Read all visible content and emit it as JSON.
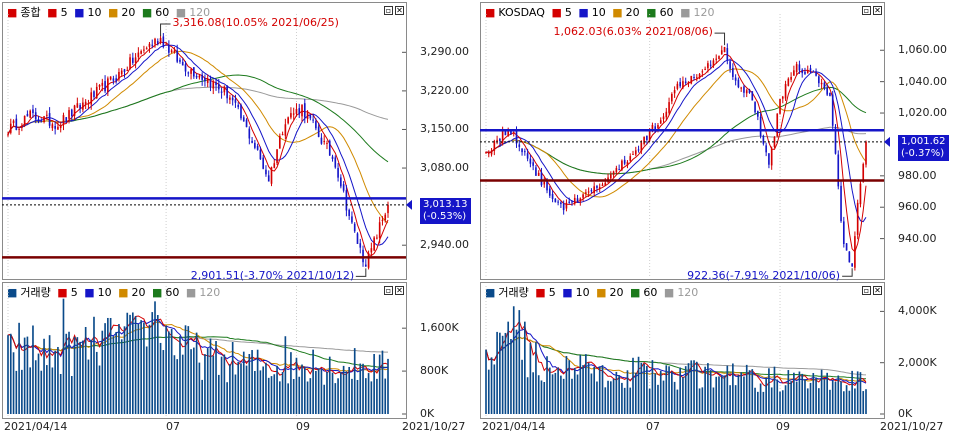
{
  "left": {
    "price_panel": {
      "legend": {
        "name": "종합",
        "ma": [
          "5",
          "10",
          "20",
          "60",
          "120"
        ]
      },
      "y_ticks": [
        "3,290.00",
        "3,220.00",
        "3,150.00",
        "3,080.00",
        "2,940.00"
      ],
      "y_tick_values": [
        3290,
        3220,
        3150,
        3080,
        2940
      ],
      "ylim": [
        2895,
        3345
      ],
      "current": {
        "value": "3,013.13",
        "change": "(-0.53%)",
        "v": 3013.13
      },
      "hlines": [
        {
          "v": 3025,
          "color": "#1515c8"
        },
        {
          "v": 2918,
          "color": "#7a0000"
        }
      ],
      "dash_v": 3013.13,
      "max_ann": "3,316.08(10.05% 2021/06/25)",
      "min_ann": "2,901.51(-3.70% 2021/10/12)"
    },
    "volume_panel": {
      "legend": {
        "name": "거래량",
        "ma": [
          "5",
          "10",
          "20",
          "60",
          "120"
        ]
      },
      "y_ticks": [
        "1,600K",
        "800K",
        "0K"
      ],
      "y_tick_values": [
        1600,
        800,
        0
      ],
      "ylim": [
        0,
        2200
      ]
    },
    "x_labels": [
      "2021/04/14",
      "07",
      "09"
    ],
    "x_end": "2021/10/27"
  },
  "right": {
    "price_panel": {
      "legend": {
        "name": "KOSDAQ",
        "ma": [
          "5",
          "10",
          "20",
          "60",
          "120"
        ]
      },
      "y_ticks": [
        "1,060.00",
        "1,040.00",
        "1,020.00",
        "980.00",
        "960.00",
        "940.00"
      ],
      "y_tick_values": [
        1060,
        1040,
        1020,
        980,
        960,
        940
      ],
      "ylim": [
        920,
        1078
      ],
      "current": {
        "value": "1,001.62",
        "change": "(-0.37%)",
        "v": 1001.62
      },
      "hlines": [
        {
          "v": 1009,
          "color": "#1515c8"
        },
        {
          "v": 977,
          "color": "#7a0000"
        }
      ],
      "dash_v": 1001.62,
      "max_ann": "1,062.03(6.03% 2021/08/06)",
      "min_ann": "922.36(-7.91% 2021/10/06)"
    },
    "volume_panel": {
      "legend": {
        "name": "거래량",
        "ma": [
          "5",
          "10",
          "20",
          "60",
          "120"
        ]
      },
      "y_ticks": [
        "4,000K",
        "2,000K",
        "0K"
      ],
      "y_tick_values": [
        4000,
        2000,
        0
      ],
      "ylim": [
        0,
        4600
      ]
    },
    "x_labels": [
      "2021/04/14",
      "07",
      "09"
    ],
    "x_end": "2021/10/27"
  },
  "colors": {
    "up": "#d40000",
    "down": "#1515c8",
    "ma5": "#d40000",
    "ma10": "#1515c8",
    "ma20": "#d08a00",
    "ma60": "#1c7a1c",
    "ma120": "#9a9a9a",
    "vol": "#0a4a8a"
  },
  "chart_data": [
    {
      "type": "line",
      "title": "종합",
      "x": [
        "2021/04/14",
        "2021/06/25",
        "2021/10/12",
        "2021/10/27"
      ],
      "series": [
        {
          "name": "종합",
          "values": [
            3180,
            3316.08,
            2901.51,
            3013.13
          ]
        }
      ],
      "ylim": [
        2895,
        3345
      ],
      "annotations": [
        "3,316.08(10.05% 2021/06/25)",
        "2,901.51(-3.70% 2021/10/12)"
      ],
      "current": "3,013.13 (-0.53%)"
    },
    {
      "type": "bar",
      "title": "거래량",
      "x": [
        "2021/04/14",
        "2021/10/27"
      ],
      "ylim": [
        0,
        2200
      ],
      "y_unit": "K"
    },
    {
      "type": "line",
      "title": "KOSDAQ",
      "x": [
        "2021/04/14",
        "2021/08/06",
        "2021/10/06",
        "2021/10/27"
      ],
      "series": [
        {
          "name": "KOSDAQ",
          "values": [
            1005,
            1062.03,
            922.36,
            1001.62
          ]
        }
      ],
      "ylim": [
        920,
        1078
      ],
      "annotations": [
        "1,062.03(6.03% 2021/08/06)",
        "922.36(-7.91% 2021/10/06)"
      ],
      "current": "1,001.62 (-0.37%)"
    },
    {
      "type": "bar",
      "title": "거래량",
      "x": [
        "2021/04/14",
        "2021/10/27"
      ],
      "ylim": [
        0,
        4600
      ],
      "y_unit": "K"
    }
  ]
}
